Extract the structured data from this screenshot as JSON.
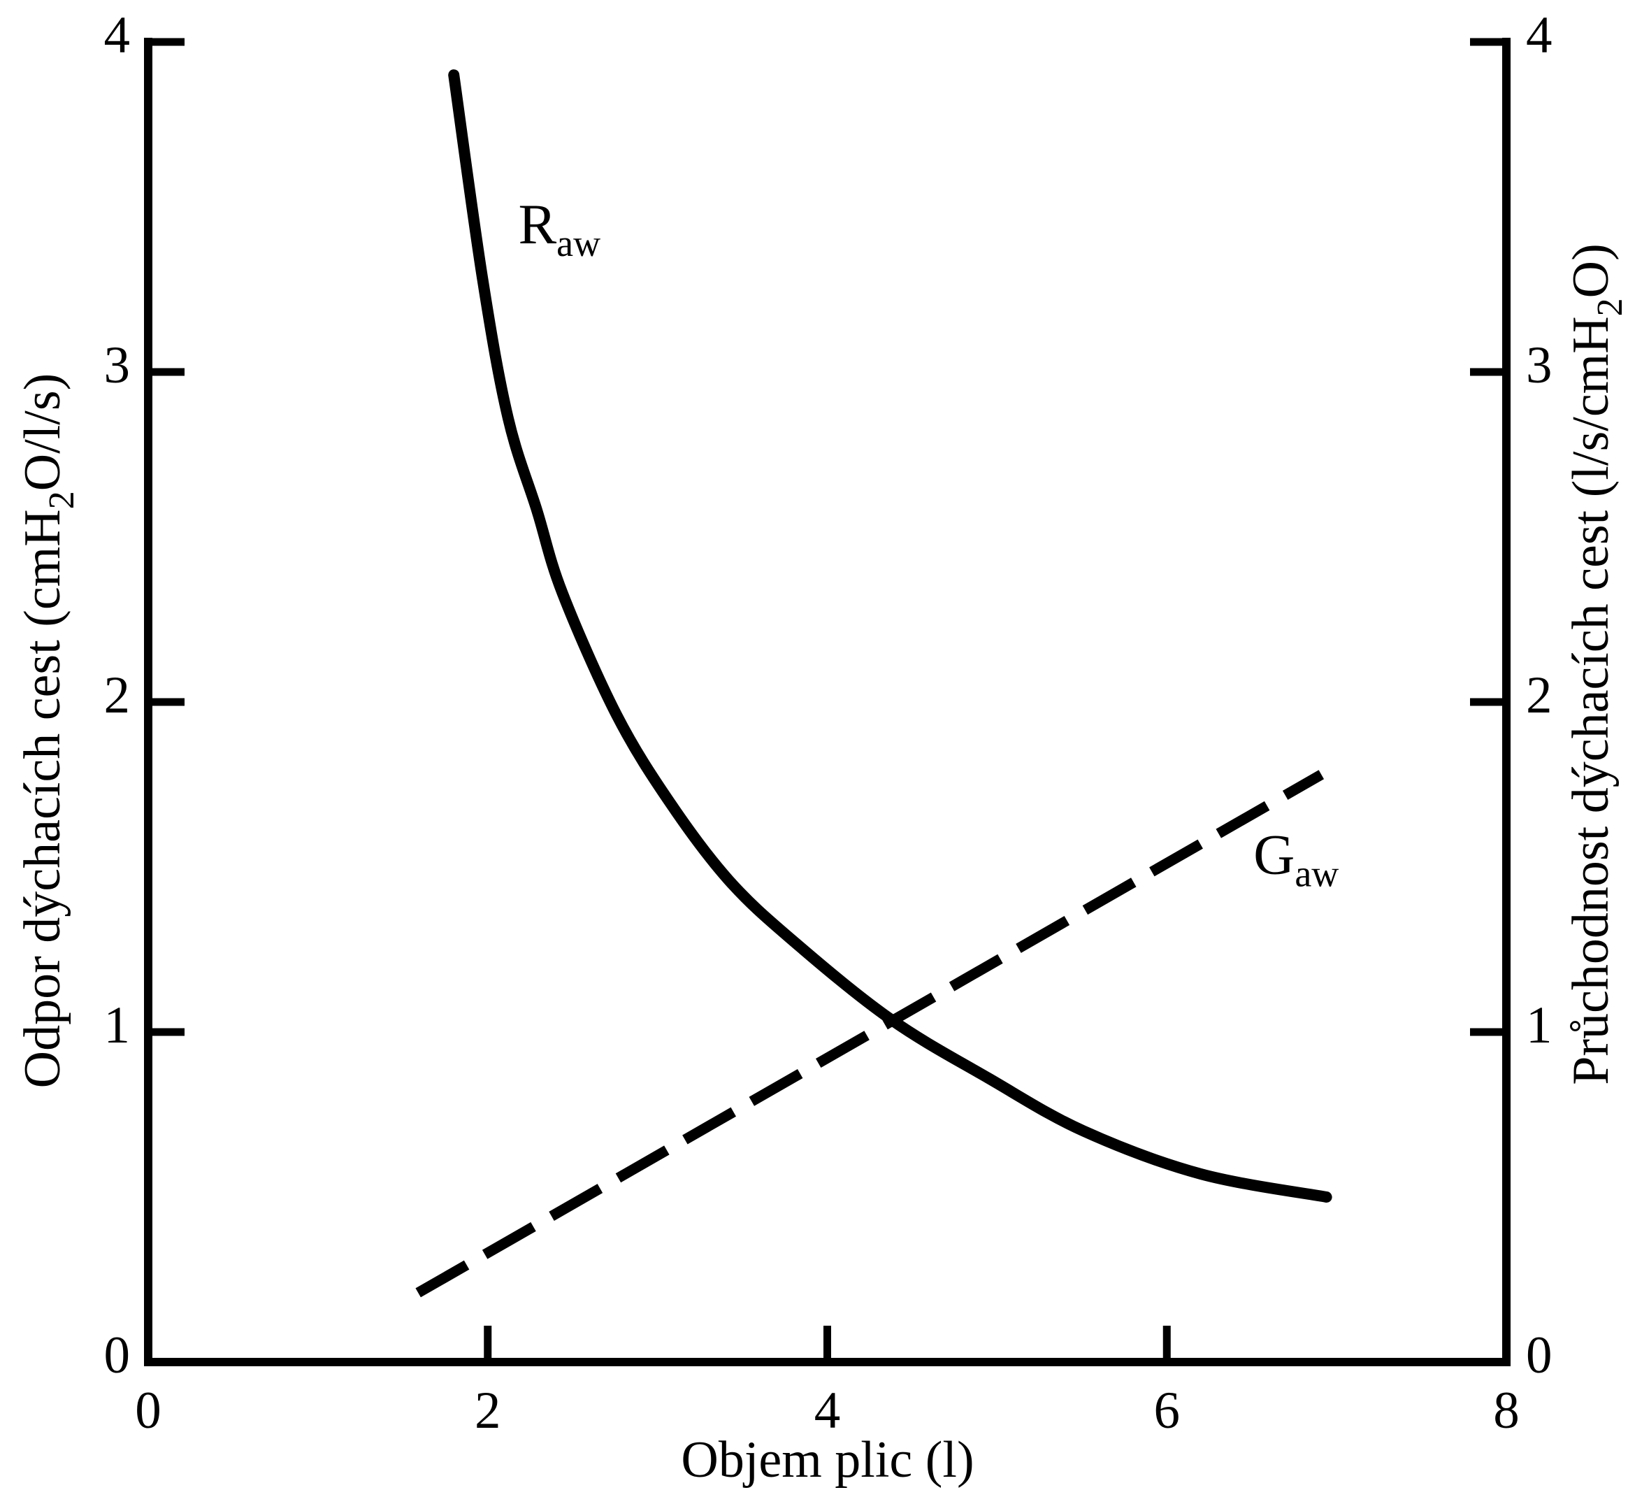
{
  "colors": {
    "background": "#ffffff",
    "foreground": "#000000"
  },
  "chart_data": {
    "type": "line",
    "title": "",
    "xlabel": "Objem plic (l)",
    "ylabel_left": {
      "pre": "Odpor dýchacích cest (cmH",
      "sub": "2",
      "post": "O/l/s)"
    },
    "ylabel_right": {
      "pre": "Průchodnost dýchacích cest (l/s/cmH",
      "sub": "2",
      "post": "O)"
    },
    "xlim": [
      0,
      8
    ],
    "ylim_left": [
      0,
      4
    ],
    "ylim_right": [
      0,
      4
    ],
    "x_ticks": [
      0,
      2,
      4,
      6,
      8
    ],
    "y_ticks_left": [
      4,
      3,
      2,
      1,
      0
    ],
    "y_ticks_right": [
      4,
      3,
      2,
      1,
      0
    ],
    "grid": false,
    "legend_position": "inline-annotations",
    "series": [
      {
        "name": "airway-resistance",
        "label": {
          "main": "R",
          "sub": "aw"
        },
        "axis": "left",
        "line_style": "solid",
        "label_pos": [
          2.18,
          3.39
        ],
        "points": [
          [
            1.8,
            3.9
          ],
          [
            1.97,
            3.28
          ],
          [
            2.12,
            2.86
          ],
          [
            2.29,
            2.58
          ],
          [
            2.44,
            2.33
          ],
          [
            2.76,
            1.96
          ],
          [
            3.08,
            1.69
          ],
          [
            3.42,
            1.46
          ],
          [
            3.79,
            1.28
          ],
          [
            4.37,
            1.04
          ],
          [
            4.95,
            0.86
          ],
          [
            5.51,
            0.7
          ],
          [
            6.2,
            0.57
          ],
          [
            6.94,
            0.5
          ]
        ]
      },
      {
        "name": "airway-conductance",
        "label": {
          "main": "G",
          "sub": "aw"
        },
        "axis": "right",
        "line_style": "dashed",
        "label_pos": [
          6.51,
          1.48
        ],
        "points": [
          [
            1.59,
            0.21
          ],
          [
            6.91,
            1.78
          ]
        ]
      }
    ]
  }
}
